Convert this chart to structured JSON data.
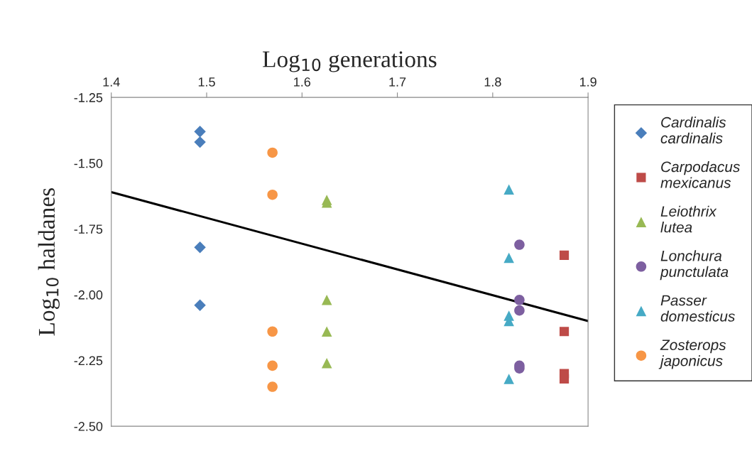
{
  "chart_data": {
    "type": "scatter",
    "xlabel": "Log$_{10}$ generations",
    "ylabel": "Log$_{10}$ haldanes",
    "xlim": [
      1.4,
      1.9
    ],
    "xticks": [
      1.4,
      1.5,
      1.6,
      1.7,
      1.8,
      1.9
    ],
    "ylim": [
      -2.5,
      -1.25
    ],
    "yticks": [
      {
        "value": -1.25,
        "label": "-1.25"
      },
      {
        "value": -1.5,
        "label": "-1.50"
      },
      {
        "value": -1.75,
        "label": "-1.75"
      },
      {
        "value": -2.0,
        "label": "-2.00"
      },
      {
        "value": -2.25,
        "label": "-2.25"
      },
      {
        "value": -2.5,
        "label": "-2.50"
      }
    ],
    "grid": false,
    "legend": "right",
    "series": [
      {
        "name": "Cardinalis\ncardinalis",
        "color": "#4a7ebb",
        "marker": "diamond",
        "x": [
          1.493,
          1.493,
          1.493,
          1.493
        ],
        "values": [
          -1.38,
          -1.42,
          -1.82,
          -2.04
        ]
      },
      {
        "name": "Carpodacus\nmexicanus",
        "color": "#be4b48",
        "marker": "square",
        "x": [
          1.875,
          1.875,
          1.875,
          1.875
        ],
        "values": [
          -1.85,
          -2.14,
          -2.3,
          -2.32
        ]
      },
      {
        "name": "Leiothrix\nlutea",
        "color": "#98b954",
        "marker": "triangle",
        "x": [
          1.626,
          1.626,
          1.626,
          1.626,
          1.626
        ],
        "values": [
          -1.64,
          -1.65,
          -2.02,
          -2.14,
          -2.26
        ]
      },
      {
        "name": "Lonchura\npunctulata",
        "color": "#7d5fa0",
        "marker": "circle",
        "x": [
          1.828,
          1.828,
          1.828,
          1.828,
          1.828
        ],
        "values": [
          -1.81,
          -2.02,
          -2.06,
          -2.27,
          -2.28
        ]
      },
      {
        "name": "Passer\ndomesticus",
        "color": "#46aac5",
        "marker": "triangle",
        "x": [
          1.817,
          1.817,
          1.817,
          1.817,
          1.817
        ],
        "values": [
          -1.6,
          -1.86,
          -2.08,
          -2.1,
          -2.32
        ]
      },
      {
        "name": "Zosterops\njaponicus",
        "color": "#f79646",
        "marker": "circle",
        "x": [
          1.569,
          1.569,
          1.569,
          1.569,
          1.569
        ],
        "values": [
          -1.46,
          -1.62,
          -2.14,
          -2.27,
          -2.35
        ]
      },
      {
        "type": "line",
        "color": "#000000",
        "marker": "none",
        "x": [
          1.4,
          1.9
        ],
        "values": [
          -1.61,
          -2.1
        ]
      }
    ]
  }
}
